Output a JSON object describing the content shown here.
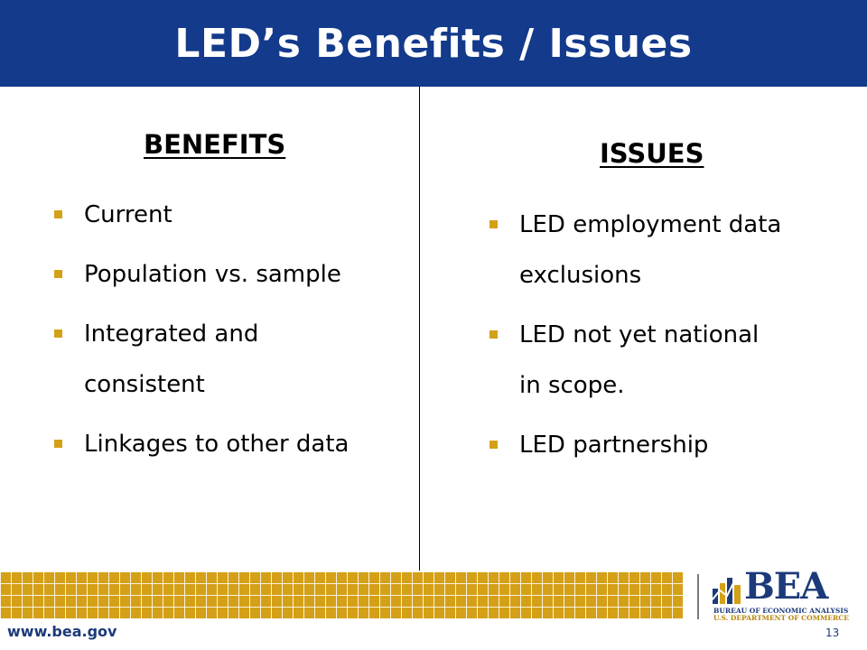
{
  "slide": {
    "title": "LED’s Benefits / Issues",
    "benefits": {
      "heading": "BENEFITS",
      "items": [
        "Current",
        "Population vs. sample",
        "Integrated and\nconsistent",
        "Linkages to other data"
      ]
    },
    "issues": {
      "heading": "ISSUES",
      "items": [
        "LED employment data\nexclusions",
        "LED not yet national\nin scope.",
        "LED partnership"
      ]
    }
  },
  "footer": {
    "url": "www.bea.gov",
    "page_number": "13",
    "logo": {
      "wordmark": "BEA",
      "line1": "BUREAU OF ECONOMIC ANALYSIS",
      "line2": "U.S. DEPARTMENT OF COMMERCE"
    }
  },
  "colors": {
    "title_bar": "#133a8b",
    "accent_gold": "#d4a017",
    "navy": "#1c3a7a"
  },
  "icons": {
    "bullet": "square-bullet-icon"
  }
}
